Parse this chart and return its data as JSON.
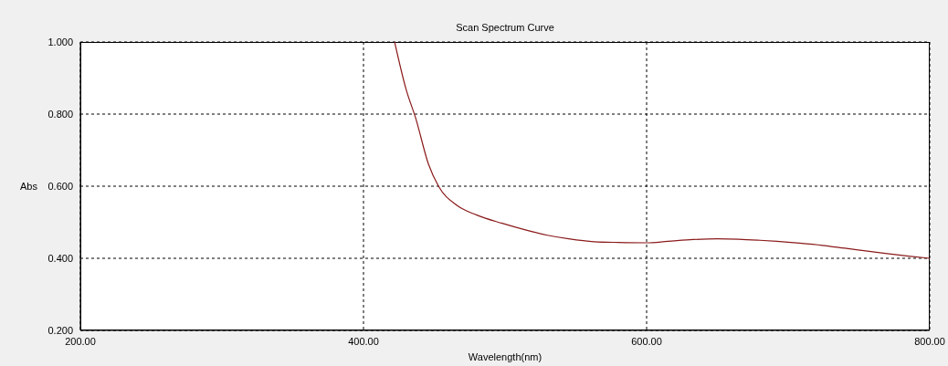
{
  "chart_data": {
    "type": "line",
    "title": "Scan Spectrum Curve",
    "xlabel": "Wavelength(nm)",
    "ylabel": "Abs",
    "xlim": [
      200,
      800
    ],
    "xticks": [
      {
        "value": 200,
        "label": "200.00"
      },
      {
        "value": 400,
        "label": "400.00"
      },
      {
        "value": 600,
        "label": "600.00"
      },
      {
        "value": 800,
        "label": "800.00"
      }
    ],
    "ylim": [
      0.2,
      1.0
    ],
    "yticks": [
      {
        "value": 0.2,
        "label": "0.200"
      },
      {
        "value": 0.4,
        "label": "0.400"
      },
      {
        "value": 0.6,
        "label": "0.600"
      },
      {
        "value": 0.8,
        "label": "0.800"
      },
      {
        "value": 1.0,
        "label": "1.000"
      }
    ],
    "grid": true,
    "marker": "none",
    "line_style": "solid",
    "series": [
      {
        "color": "#8b1a1a",
        "x": [
          422,
          430,
          437,
          446,
          453,
          466,
          480,
          498,
          515,
          530,
          545,
          563,
          580,
          600,
          615,
          633,
          650,
          665,
          680,
          692,
          708,
          724,
          740,
          756,
          770,
          785,
          800
        ],
        "values": [
          1.0,
          0.87,
          0.787,
          0.66,
          0.6,
          0.547,
          0.52,
          0.497,
          0.478,
          0.464,
          0.454,
          0.446,
          0.444,
          0.443,
          0.447,
          0.452,
          0.454,
          0.453,
          0.45,
          0.447,
          0.442,
          0.436,
          0.428,
          0.42,
          0.413,
          0.406,
          0.4
        ]
      }
    ]
  }
}
